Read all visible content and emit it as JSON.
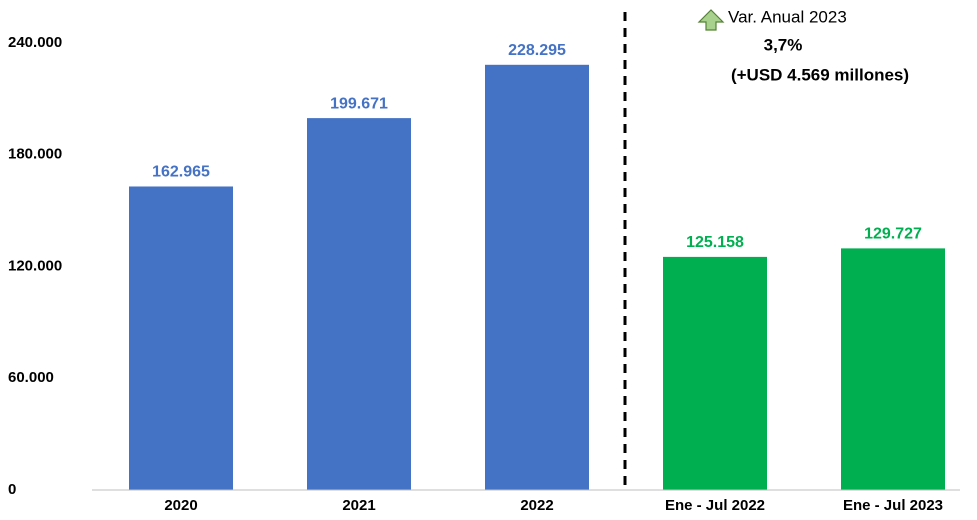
{
  "chart_data": {
    "type": "bar",
    "categories": [
      "2020",
      "2021",
      "2022",
      "Ene - Jul 2022",
      "Ene - Jul 2023"
    ],
    "values": [
      162965,
      199671,
      228295,
      125158,
      129727
    ],
    "value_labels": [
      "162.965",
      "199.671",
      "228.295",
      "125.158",
      "129.727"
    ],
    "colors": [
      "#4472c4",
      "#4472c4",
      "#4472c4",
      "#00b050",
      "#00b050"
    ],
    "ylim": [
      0,
      240000
    ],
    "yticks": [
      0,
      {
        "value": 60000,
        "label": "60.000"
      },
      {
        "value": 120000,
        "label": "120.000"
      },
      {
        "value": 180000,
        "label": "180.000"
      },
      {
        "value": 240000,
        "label": "240.000"
      }
    ],
    "grid": false,
    "annotations": [
      "Var. Anual 2023",
      "3,7%",
      "(+USD 4.569 millones)"
    ]
  }
}
